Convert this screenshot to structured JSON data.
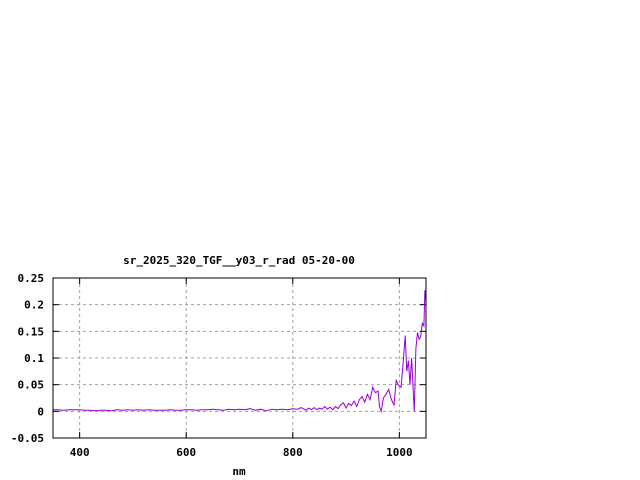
{
  "chart_data": {
    "type": "line",
    "title": "sr_2025_320_TGF__y03_r_rad 05-20-00",
    "xlabel": "nm",
    "ylabel": "",
    "xlim": [
      350,
      1050
    ],
    "ylim": [
      -0.05,
      0.25
    ],
    "xticks": [
      400,
      600,
      800,
      1000
    ],
    "xtick_labels": [
      "400",
      "600",
      "800",
      "1000"
    ],
    "yticks": [
      -0.05,
      0,
      0.05,
      0.1,
      0.15,
      0.2,
      0.25
    ],
    "ytick_labels": [
      "-0.05",
      "0",
      "0.05",
      "0.1",
      "0.15",
      "0.2",
      "0.25"
    ],
    "grid": true,
    "series": [
      {
        "color": "#9400d3",
        "x": [
          350,
          360,
          370,
          380,
          390,
          400,
          410,
          420,
          430,
          440,
          450,
          460,
          470,
          480,
          490,
          500,
          510,
          520,
          530,
          540,
          550,
          560,
          570,
          580,
          590,
          600,
          610,
          620,
          630,
          640,
          650,
          660,
          670,
          680,
          690,
          700,
          710,
          720,
          730,
          740,
          750,
          760,
          770,
          780,
          790,
          800,
          810,
          815,
          820,
          825,
          830,
          835,
          840,
          845,
          850,
          855,
          860,
          865,
          870,
          875,
          880,
          885,
          890,
          895,
          900,
          905,
          910,
          915,
          920,
          925,
          930,
          935,
          940,
          945,
          950,
          955,
          960,
          963,
          966,
          970,
          975,
          980,
          985,
          990,
          994,
          998,
          1003,
          1007,
          1011,
          1014,
          1017,
          1020,
          1023,
          1026,
          1028,
          1031,
          1034,
          1037,
          1040,
          1043,
          1046,
          1048,
          1050
        ],
        "y": [
          0.003,
          0.003,
          0.002,
          0.003,
          0.003,
          0.003,
          0.002,
          0.002,
          0.001,
          0.002,
          0.002,
          0.001,
          0.003,
          0.002,
          0.003,
          0.002,
          0.003,
          0.002,
          0.003,
          0.002,
          0.002,
          0.002,
          0.003,
          0.002,
          0.002,
          0.003,
          0.003,
          0.002,
          0.003,
          0.003,
          0.004,
          0.003,
          0.002,
          0.004,
          0.003,
          0.004,
          0.003,
          0.005,
          0.002,
          0.004,
          0.001,
          0.004,
          0.003,
          0.004,
          0.003,
          0.005,
          0.004,
          0.007,
          0.005,
          0.002,
          0.006,
          0.003,
          0.007,
          0.003,
          0.006,
          0.004,
          0.009,
          0.004,
          0.008,
          0.003,
          0.009,
          0.005,
          0.012,
          0.016,
          0.006,
          0.015,
          0.011,
          0.019,
          0.009,
          0.022,
          0.028,
          0.017,
          0.032,
          0.022,
          0.045,
          0.035,
          0.038,
          0.008,
          0.0,
          0.025,
          0.032,
          0.041,
          0.022,
          0.012,
          0.058,
          0.05,
          0.045,
          0.09,
          0.142,
          0.075,
          0.095,
          0.05,
          0.1,
          0.04,
          0.0,
          0.118,
          0.148,
          0.135,
          0.14,
          0.165,
          0.16,
          0.227,
          0.205
        ]
      }
    ]
  }
}
